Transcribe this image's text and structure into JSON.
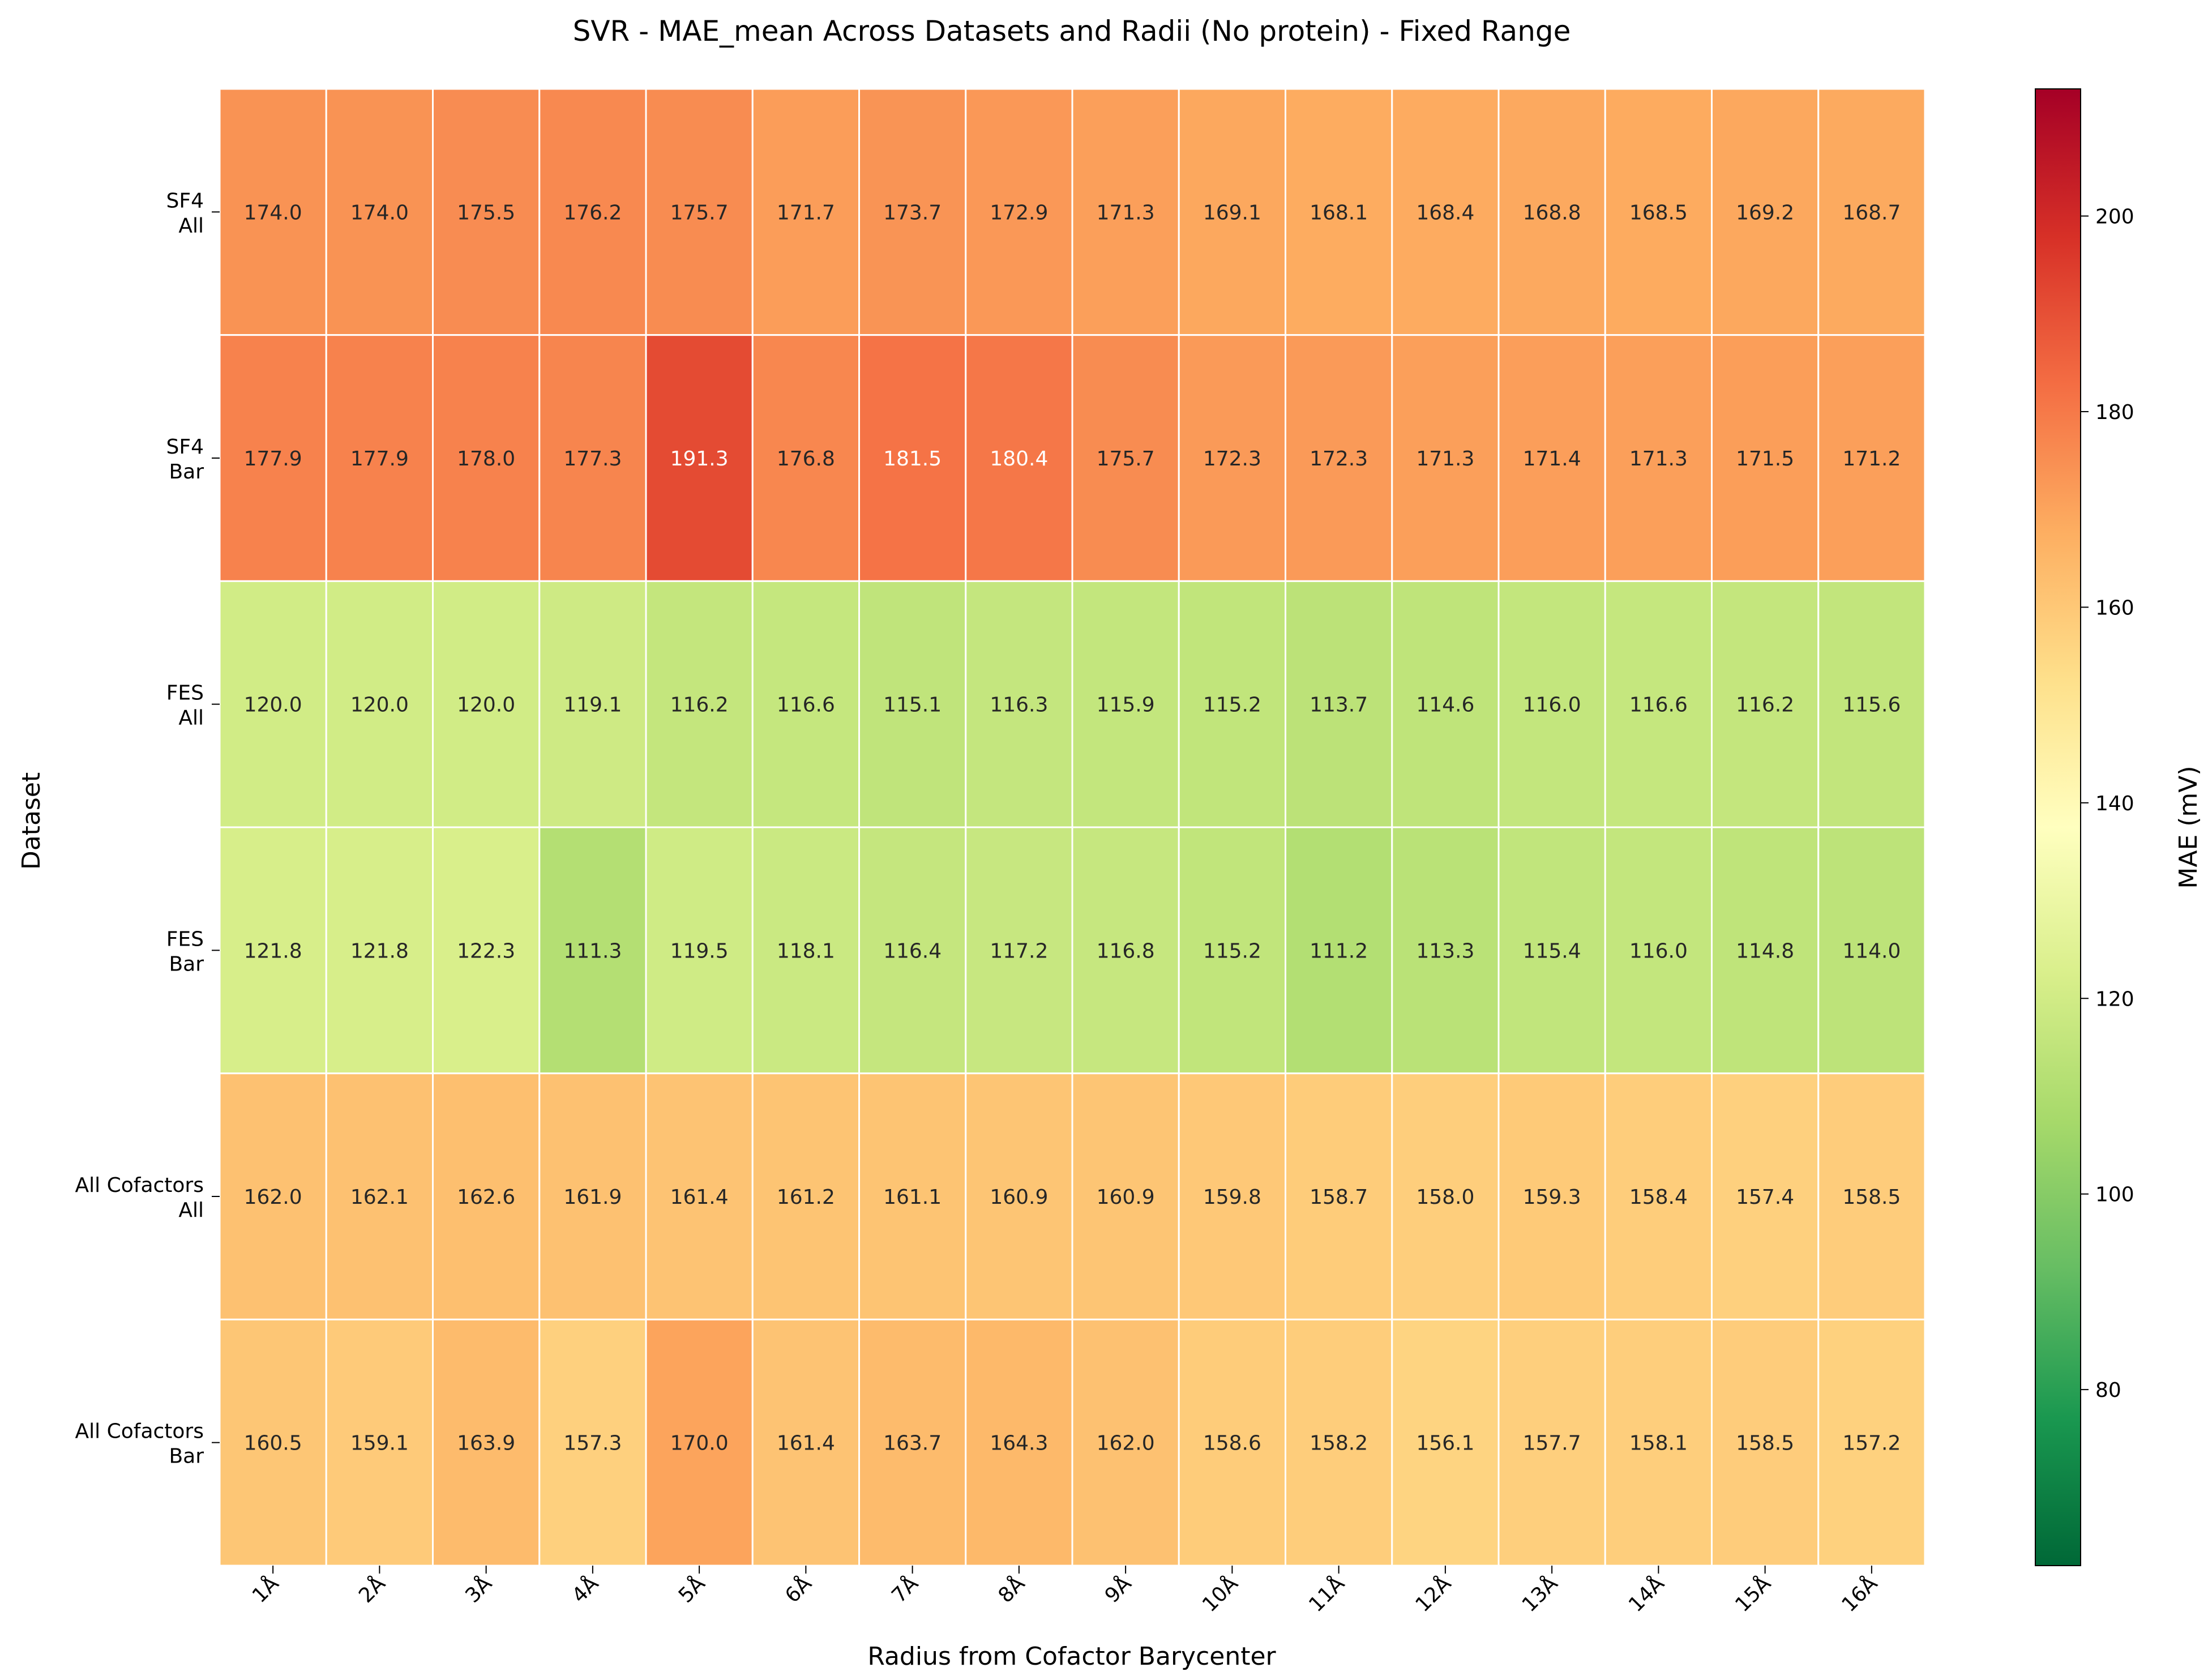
{
  "chart_data": {
    "type": "heatmap",
    "title": "SVR - MAE_mean Across Datasets and Radii (No protein) - Fixed Range",
    "xlabel": "Radius from Cofactor Barycenter",
    "ylabel": "Dataset",
    "colorbar_label": "MAE (mV)",
    "colormap": "RdYlGn_r",
    "vmin": 62,
    "vmax": 213,
    "colorbar_ticks": [
      80,
      100,
      120,
      140,
      160,
      180,
      200
    ],
    "x_categories": [
      "1Å",
      "2Å",
      "3Å",
      "4Å",
      "5Å",
      "6Å",
      "7Å",
      "8Å",
      "9Å",
      "10Å",
      "11Å",
      "12Å",
      "13Å",
      "14Å",
      "15Å",
      "16Å"
    ],
    "y_categories": [
      [
        "SF4",
        "All"
      ],
      [
        "SF4",
        "Bar"
      ],
      [
        "FES",
        "All"
      ],
      [
        "FES",
        "Bar"
      ],
      [
        "All Cofactors",
        "All"
      ],
      [
        "All Cofactors",
        "Bar"
      ]
    ],
    "values": [
      [
        174.0,
        174.0,
        175.5,
        176.2,
        175.7,
        171.7,
        173.7,
        172.9,
        171.3,
        169.1,
        168.1,
        168.4,
        168.8,
        168.5,
        169.2,
        168.7
      ],
      [
        177.9,
        177.9,
        178.0,
        177.3,
        191.3,
        176.8,
        181.5,
        180.4,
        175.7,
        172.3,
        172.3,
        171.3,
        171.4,
        171.3,
        171.5,
        171.2
      ],
      [
        120.0,
        120.0,
        120.0,
        119.1,
        116.2,
        116.6,
        115.1,
        116.3,
        115.9,
        115.2,
        113.7,
        114.6,
        116.0,
        116.6,
        116.2,
        115.6
      ],
      [
        121.8,
        121.8,
        122.3,
        111.3,
        119.5,
        118.1,
        116.4,
        117.2,
        116.8,
        115.2,
        111.2,
        113.3,
        115.4,
        116.0,
        114.8,
        114.0
      ],
      [
        162.0,
        162.1,
        162.6,
        161.9,
        161.4,
        161.2,
        161.1,
        160.9,
        160.9,
        159.8,
        158.7,
        158.0,
        159.3,
        158.4,
        157.4,
        158.5
      ],
      [
        160.5,
        159.1,
        163.9,
        157.3,
        170.0,
        161.4,
        163.7,
        164.3,
        162.0,
        158.6,
        158.2,
        156.1,
        157.7,
        158.1,
        158.5,
        157.2
      ]
    ],
    "grid": false,
    "legend": "colorbar-right"
  }
}
